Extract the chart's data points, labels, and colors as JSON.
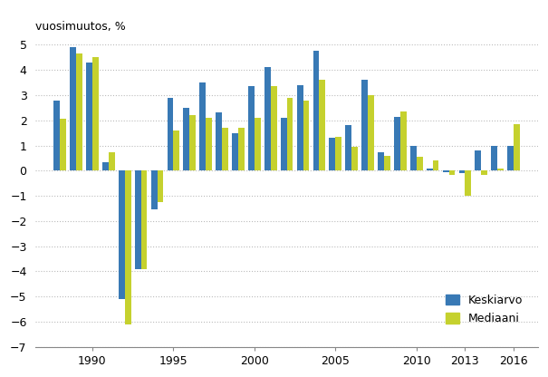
{
  "years": [
    1988,
    1989,
    1990,
    1991,
    1992,
    1993,
    1994,
    1995,
    1996,
    1997,
    1998,
    1999,
    2000,
    2001,
    2002,
    2003,
    2004,
    2005,
    2006,
    2007,
    2008,
    2009,
    2010,
    2011,
    2012,
    2013,
    2014,
    2015,
    2016
  ],
  "keskiarvo": [
    2.8,
    4.9,
    4.3,
    0.35,
    -5.1,
    -3.9,
    -1.55,
    2.9,
    2.5,
    3.5,
    2.3,
    1.5,
    3.35,
    4.1,
    2.1,
    3.4,
    4.75,
    1.3,
    1.8,
    3.6,
    0.75,
    2.15,
    1.0,
    0.1,
    -0.05,
    -0.1,
    0.8,
    1.0,
    1.0
  ],
  "mediaani": [
    2.05,
    4.65,
    4.5,
    0.75,
    -6.1,
    -3.9,
    -1.25,
    1.6,
    2.2,
    2.1,
    1.7,
    1.7,
    2.1,
    3.35,
    2.9,
    2.8,
    3.6,
    1.35,
    0.95,
    3.0,
    0.6,
    2.35,
    0.55,
    0.4,
    -0.15,
    -1.0,
    -0.15,
    0.1,
    1.85
  ],
  "bar_color_keskiarvo": "#3879b5",
  "bar_color_mediaani": "#c5d12e",
  "ylabel": "vuosimuutos, %",
  "ylim": [
    -7,
    5
  ],
  "yticks": [
    -7,
    -6,
    -5,
    -4,
    -3,
    -2,
    -1,
    0,
    1,
    2,
    3,
    4,
    5
  ],
  "xlim": [
    1986.5,
    2017.5
  ],
  "xtick_years": [
    1990,
    1995,
    2000,
    2005,
    2010,
    2013,
    2016
  ],
  "legend_labels": [
    "Keskiarvo",
    "Mediaani"
  ],
  "background_color": "#ffffff",
  "grid_color": "#bbbbbb"
}
